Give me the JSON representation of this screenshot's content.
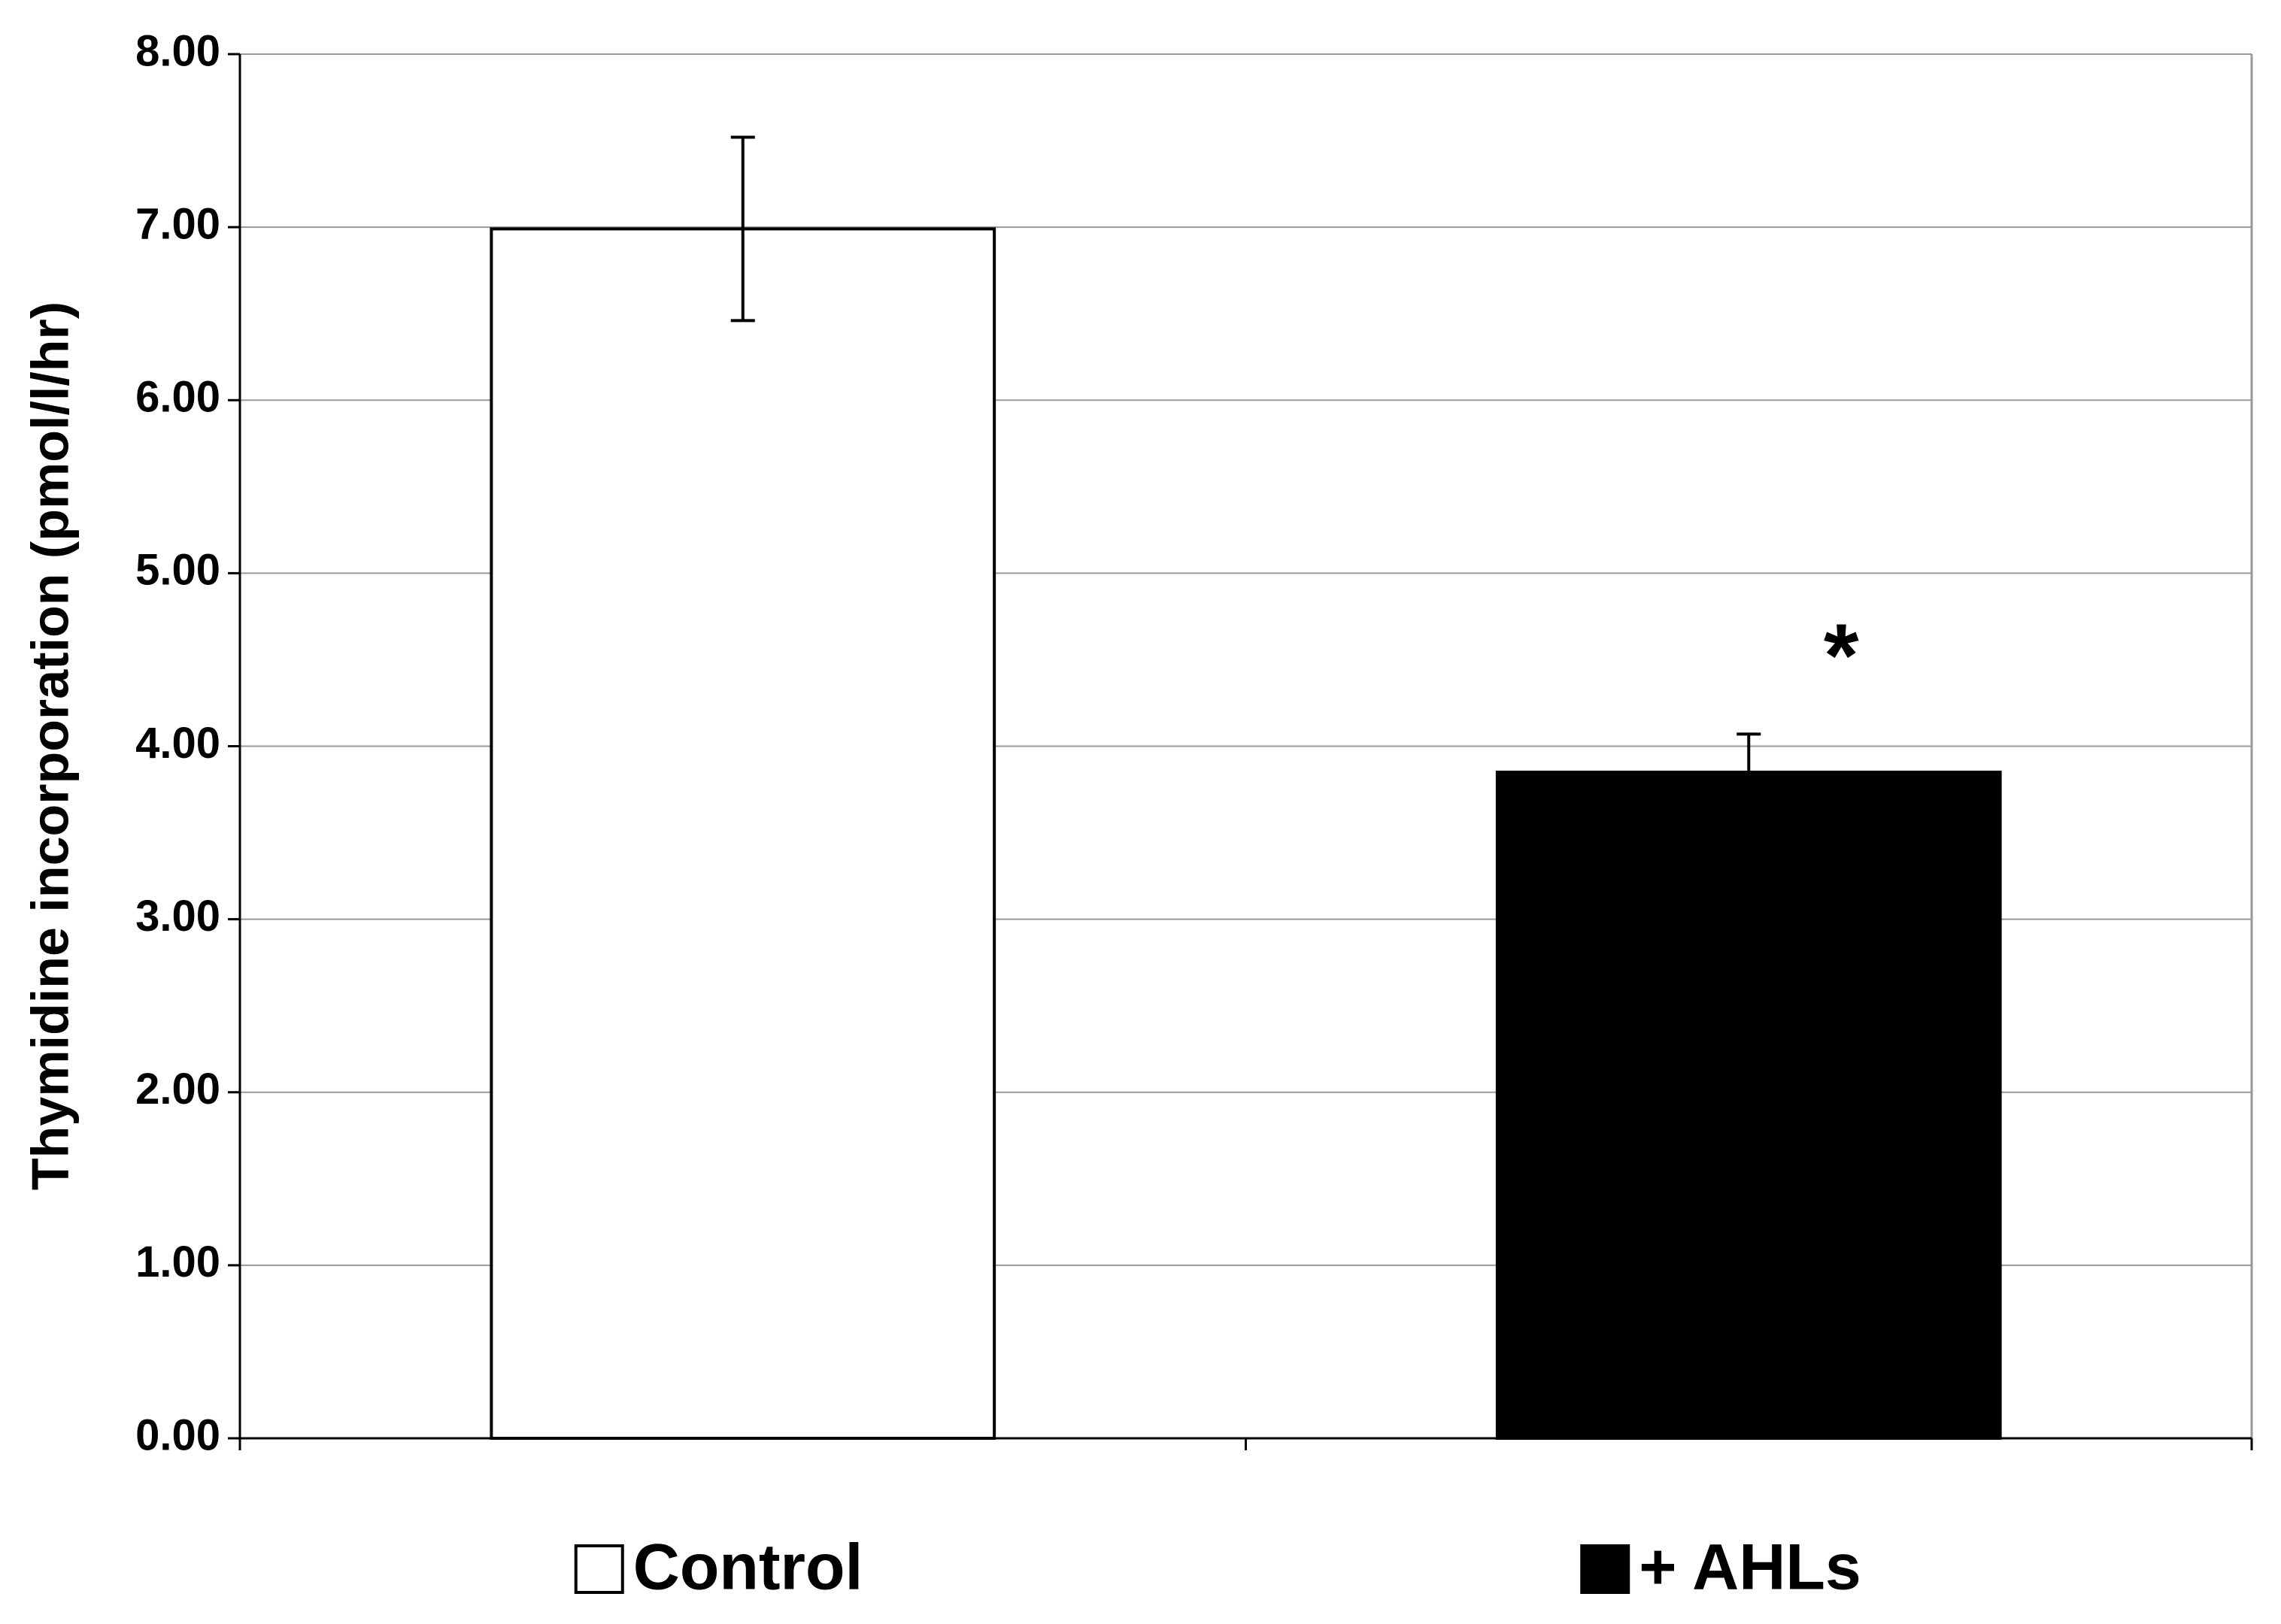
{
  "chart_data": {
    "type": "bar",
    "y_label": "Thymidine incorporation (pmol/l/hr)",
    "categories": [
      "Control",
      "+ AHLs"
    ],
    "values": [
      6.99,
      3.85
    ],
    "errors": [
      0.53,
      0.22
    ],
    "colors": [
      "#ffffff",
      "#000000"
    ],
    "annotation": "*",
    "ylim": [
      0,
      8
    ],
    "yticks": [
      {
        "value": 0,
        "label": "0.00"
      },
      {
        "value": 1,
        "label": "1.00"
      },
      {
        "value": 2,
        "label": "2.00"
      },
      {
        "value": 3,
        "label": "3.00"
      },
      {
        "value": 4,
        "label": "4.00"
      },
      {
        "value": 5,
        "label": "5.00"
      },
      {
        "value": 6,
        "label": "6.00"
      },
      {
        "value": 7,
        "label": "7.00"
      },
      {
        "value": 8,
        "label": "8.00"
      }
    ],
    "grid": true
  }
}
